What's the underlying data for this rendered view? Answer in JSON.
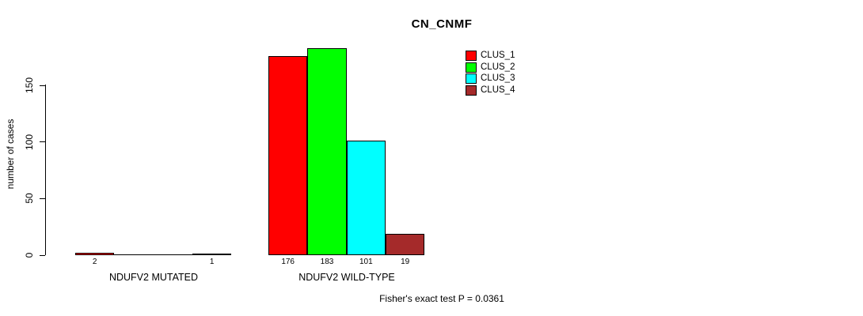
{
  "chart_data": {
    "type": "bar",
    "title": "CN_CNMF",
    "ylabel": "number of cases",
    "xlabel": "",
    "ylim": [
      0,
      183
    ],
    "yticks": [
      0,
      50,
      100,
      150
    ],
    "ytick_labels": [
      "0",
      "50",
      "100",
      "150"
    ],
    "grid": false,
    "legend_position": "top-right-inside",
    "series": [
      {
        "name": "CLUS_1",
        "color": "#FF0000"
      },
      {
        "name": "CLUS_2",
        "color": "#00FF00"
      },
      {
        "name": "CLUS_3",
        "color": "#00FFFF"
      },
      {
        "name": "CLUS_4",
        "color": "#A52A2A"
      }
    ],
    "groups": [
      {
        "label": "NDUFV2 MUTATED",
        "values": [
          2,
          0,
          0,
          1
        ],
        "bar_labels": [
          "2",
          "",
          "",
          "1"
        ]
      },
      {
        "label": "NDUFV2 WILD-TYPE",
        "values": [
          176,
          183,
          101,
          19
        ],
        "bar_labels": [
          "176",
          "183",
          "101",
          "19"
        ]
      }
    ],
    "annotation": "Fisher's exact test P = 0.0361"
  },
  "colors": {
    "background": "#FFFFFF",
    "axis": "#000000",
    "text": "#000000"
  }
}
